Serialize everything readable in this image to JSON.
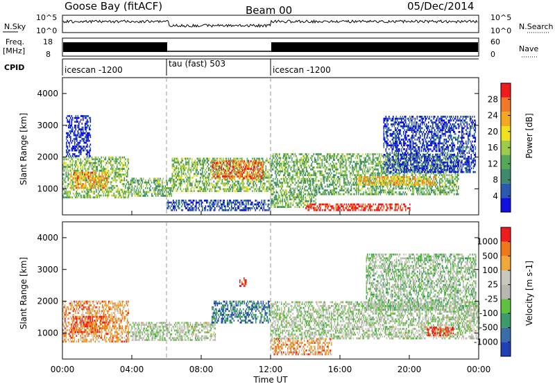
{
  "header": {
    "station": "Goose Bay (fitACF)",
    "beam": "Beam 00",
    "date": "05/Dec/2014"
  },
  "top_panels": {
    "noise": {
      "left_label": "N.Sky",
      "right_label": "N.Search",
      "left_ticks": [
        "10^5",
        "10^0"
      ],
      "right_ticks": [
        "10^5",
        "10^0"
      ]
    },
    "freq": {
      "left_label_1": "Freq.",
      "left_label_2": "[MHz]",
      "right_label": "Nave",
      "left_ticks": [
        "18",
        "8"
      ],
      "right_ticks": [
        "60",
        "0"
      ]
    },
    "cpid": {
      "label": "CPID",
      "segments": [
        {
          "name": "icescan -1200",
          "start_h": 0,
          "end_h": 6
        },
        {
          "name": "tau (fast) 503",
          "start_h": 6,
          "end_h": 12
        },
        {
          "name": "icescan -1200",
          "start_h": 12,
          "end_h": 24
        }
      ]
    }
  },
  "chart_data": [
    {
      "type": "heatmap",
      "title": "Power",
      "ylabel": "Slant Range [km]",
      "xlim": [
        0,
        24
      ],
      "ylim": [
        180,
        4500
      ],
      "yticks": [
        "1000",
        "2000",
        "3000",
        "4000"
      ],
      "colorbar": {
        "label": "Power [dB]",
        "ticks": [
          "4",
          "8",
          "12",
          "16",
          "20",
          "24",
          "28"
        ],
        "range": [
          0,
          32
        ],
        "colors": [
          "#1010e0",
          "#2a5ab0",
          "#3f8a6e",
          "#55a85a",
          "#9ccc4a",
          "#f0e020",
          "#f4a820",
          "#f07828",
          "#ee1c1c"
        ]
      },
      "regions": [
        {
          "x": [
            0,
            3.8
          ],
          "y": [
            700,
            2000
          ],
          "level": 0.45
        },
        {
          "x": [
            0.4,
            2.6
          ],
          "y": [
            1000,
            1500
          ],
          "level": 0.75
        },
        {
          "x": [
            3.8,
            6.3
          ],
          "y": [
            750,
            1350
          ],
          "level": 0.4
        },
        {
          "x": [
            6.3,
            12
          ],
          "y": [
            900,
            1950
          ],
          "level": 0.45
        },
        {
          "x": [
            8.6,
            11.6
          ],
          "y": [
            1300,
            1850
          ],
          "level": 0.85
        },
        {
          "x": [
            6,
            12
          ],
          "y": [
            300,
            650
          ],
          "level": 0.15
        },
        {
          "x": [
            12,
            14.6
          ],
          "y": [
            400,
            800
          ],
          "level": 0.4
        },
        {
          "x": [
            14,
            20
          ],
          "y": [
            300,
            500
          ],
          "level": 0.95
        },
        {
          "x": [
            12,
            22.8
          ],
          "y": [
            800,
            2100
          ],
          "level": 0.4
        },
        {
          "x": [
            17,
            21.5
          ],
          "y": [
            1100,
            1400
          ],
          "level": 0.7
        },
        {
          "x": [
            18.5,
            23.8
          ],
          "y": [
            1500,
            3300
          ],
          "level": 0.1
        },
        {
          "x": [
            0.2,
            1.6
          ],
          "y": [
            2000,
            3300
          ],
          "level": 0.05
        }
      ]
    },
    {
      "type": "heatmap",
      "title": "Velocity",
      "ylabel": "Slant Range [km]",
      "xlabel": "Time UT",
      "xticks": [
        "00:00",
        "04:00",
        "08:00",
        "12:00",
        "16:00",
        "20:00",
        "00:00"
      ],
      "xlim": [
        0,
        24
      ],
      "ylim": [
        180,
        4500
      ],
      "yticks": [
        "1000",
        "2000",
        "3000",
        "4000"
      ],
      "colorbar": {
        "label": "Velocity [m s-1]",
        "ticks": [
          "1000",
          "500",
          "100",
          "25",
          "-25",
          "-100",
          "-500",
          "-1000"
        ],
        "range": [
          1000,
          -1000
        ],
        "colors": [
          "#2040b8",
          "#3a6ea8",
          "#3d9a6a",
          "#60c040",
          "#b8b8b0",
          "#c8c8c0",
          "#f0a838",
          "#f07818",
          "#ee1c1c"
        ]
      },
      "regions": [
        {
          "x": [
            0,
            3.8
          ],
          "y": [
            700,
            2000
          ],
          "level": 0.75
        },
        {
          "x": [
            0.5,
            2.5
          ],
          "y": [
            1000,
            1500
          ],
          "level": 0.85
        },
        {
          "x": [
            3.8,
            8.8
          ],
          "y": [
            750,
            1300
          ],
          "level": 0.5
        },
        {
          "x": [
            8.6,
            12
          ],
          "y": [
            1300,
            2000
          ],
          "level": 0.2
        },
        {
          "x": [
            12,
            15.5
          ],
          "y": [
            300,
            800
          ],
          "level": 0.75
        },
        {
          "x": [
            12,
            24
          ],
          "y": [
            800,
            2000
          ],
          "level": 0.5
        },
        {
          "x": [
            21,
            22.5
          ],
          "y": [
            900,
            1200
          ],
          "level": 0.95
        },
        {
          "x": [
            17.5,
            23.8
          ],
          "y": [
            1700,
            3500
          ],
          "level": 0.45
        },
        {
          "x": [
            10.2,
            10.6
          ],
          "y": [
            2450,
            2750
          ],
          "level": 0.95
        }
      ]
    }
  ]
}
